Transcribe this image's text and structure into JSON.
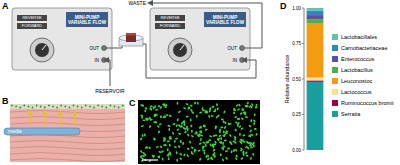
{
  "diagram": {
    "panel_a": {
      "label": "A",
      "pump": {
        "title": "MINI-PUMP VARIABLE FLOW",
        "switch": [
          "REVERSE",
          "FORWARD"
        ],
        "ports": [
          "OUT",
          "IN"
        ]
      },
      "reservoir": "RESERVOIR",
      "waste": "WASTE"
    },
    "panel_b": {
      "label": "B",
      "channel": "media"
    },
    "panel_c": {
      "label": "C"
    },
    "panel_d": {
      "label": "D"
    }
  },
  "chart_data": {
    "type": "bar",
    "stacked": true,
    "y_label": "Relative abundance",
    "categories": [
      null
    ],
    "ylim": [
      0,
      1
    ],
    "yticks": [
      {
        "value": 0,
        "label": "0.00"
      },
      0.25,
      {
        "value": 0.5,
        "label": "0.50"
      },
      0.75,
      {
        "value": 1,
        "label": "1.00"
      }
    ],
    "tick_labels": "y",
    "legend": "right",
    "series": [
      {
        "name": "Lactobacillales",
        "color": "#66c2a5",
        "values": [
          0.02
        ]
      },
      {
        "name": "Carnobacteriaceae",
        "color": "#3288bd",
        "values": [
          0.03
        ]
      },
      {
        "name": "Enterococcus",
        "color": "#5e4fa2",
        "values": [
          0.03
        ]
      },
      {
        "name": "Lactobacillus",
        "color": "#4daf4a",
        "values": [
          0.03
        ]
      },
      {
        "name": "Leuconostoc",
        "color": "#f39c12",
        "values": [
          0.38
        ]
      },
      {
        "name": "Lactococcus",
        "color": "#fee08b",
        "values": [
          0.02
        ]
      },
      {
        "name": "Ruminococcus bromii",
        "color": "#9e0142",
        "values": [
          0.01
        ]
      },
      {
        "name": "Serratia",
        "color": "#1b9e9e",
        "values": [
          0.48
        ]
      }
    ]
  }
}
